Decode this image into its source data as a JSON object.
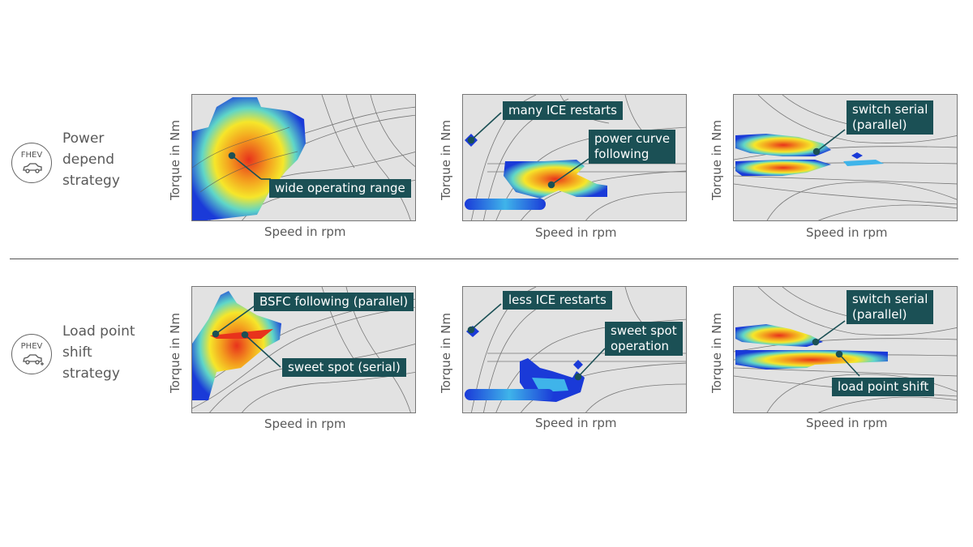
{
  "rows": [
    {
      "icon_tag": "FHEV",
      "label_lines": [
        "Power",
        "depend",
        "strategy"
      ]
    },
    {
      "icon_tag": "PHEV",
      "label_lines": [
        "Load point",
        "shift",
        "strategy"
      ]
    }
  ],
  "axes": {
    "xlabel": "Speed in rpm",
    "ylabel": "Torque in Nm"
  },
  "callouts": {
    "p1": [
      "wide operating range"
    ],
    "p2a": [
      "many ICE restarts"
    ],
    "p2b": [
      "power curve",
      "following"
    ],
    "p3": [
      "switch serial",
      "(parallel)"
    ],
    "p4a": [
      "BSFC following (parallel)"
    ],
    "p4b": [
      "sweet spot (serial)"
    ],
    "p5a": [
      "less ICE restarts"
    ],
    "p5b": [
      "sweet spot",
      "operation"
    ],
    "p6a": [
      "switch serial",
      "(parallel)"
    ],
    "p6b": [
      "load point shift"
    ]
  },
  "colors": {
    "callout_bg": "#1b5055",
    "plot_bg": "#e2e2e2",
    "contour": "#777777"
  },
  "icons": {
    "row0": "car-icon",
    "row1": "plug-in-car-icon"
  }
}
